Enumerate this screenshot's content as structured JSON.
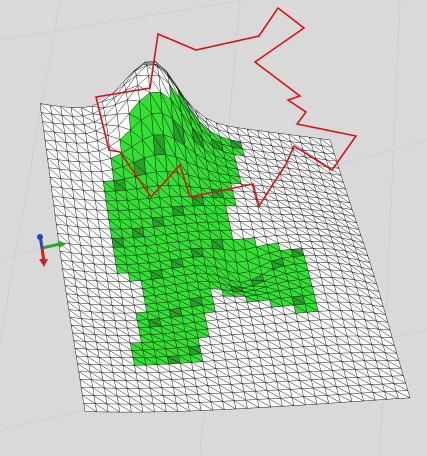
{
  "viewport": {
    "background": "#d9d9d9",
    "grid_color": "#cfcfcf"
  },
  "mesh": {
    "line_color": "#000000",
    "fill_color": "#ffffff"
  },
  "region": {
    "fill_color": "#22dd22",
    "dark_color": "#169916"
  },
  "outline": {
    "stroke_color": "#dd1111"
  },
  "axes_gizmo": {
    "icon": "xyz-axes-icon",
    "x_color": "#cc2222",
    "y_color": "#22aa22",
    "z_color": "#2244cc"
  }
}
